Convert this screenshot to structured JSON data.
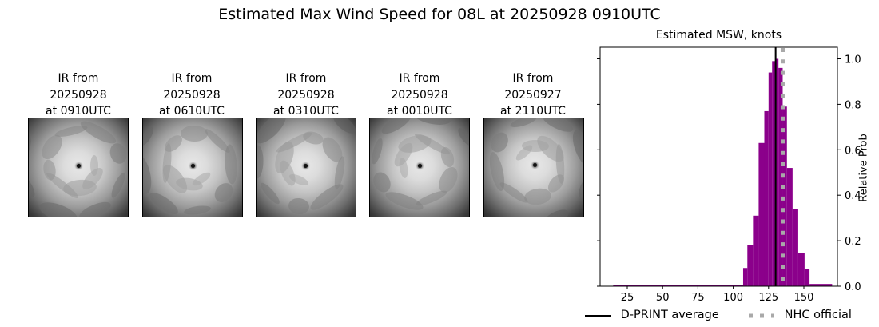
{
  "figure": {
    "title": "Estimated Max Wind Speed for 08L at 20250928 0910UTC"
  },
  "ir_panels": [
    {
      "line1": "IR from",
      "line2": "20250928",
      "line3": "at 0910UTC",
      "eye": [
        62,
        59
      ]
    },
    {
      "line1": "IR from",
      "line2": "20250928",
      "line3": "at 0610UTC",
      "eye": [
        62,
        59
      ]
    },
    {
      "line1": "IR from",
      "line2": "20250928",
      "line3": "at 0310UTC",
      "eye": [
        61,
        59
      ]
    },
    {
      "line1": "IR from",
      "line2": "20250928",
      "line3": "at 0010UTC",
      "eye": [
        62,
        59
      ]
    },
    {
      "line1": "IR from",
      "line2": "20250927",
      "line3": "at 2110UTC",
      "eye": [
        63,
        58
      ]
    }
  ],
  "chart_data": {
    "type": "bar",
    "title": "Estimated MSW, knots",
    "xlabel": "",
    "ylabel": "Relative Prob",
    "xlim": [
      6,
      174
    ],
    "ylim": [
      0,
      1.05
    ],
    "xticks": [
      25,
      50,
      75,
      100,
      125,
      150
    ],
    "yticks": [
      0.0,
      0.2,
      0.4,
      0.6,
      0.8,
      1.0
    ],
    "ytick_labels": [
      "0.0",
      "0.2",
      "0.4",
      "0.6",
      "0.8",
      "1.0"
    ],
    "y_axis_side": "right",
    "grid": false,
    "bar_color": "#8b008b",
    "histogram_bins": [
      {
        "x0": 15,
        "x1": 107,
        "value": 0.005
      },
      {
        "x0": 107,
        "x1": 110,
        "value": 0.08
      },
      {
        "x0": 110,
        "x1": 114,
        "value": 0.18
      },
      {
        "x0": 114,
        "x1": 118,
        "value": 0.31
      },
      {
        "x0": 118,
        "x1": 122,
        "value": 0.63
      },
      {
        "x0": 122,
        "x1": 125,
        "value": 0.77
      },
      {
        "x0": 125,
        "x1": 127.5,
        "value": 0.94
      },
      {
        "x0": 127.5,
        "x1": 130,
        "value": 0.99
      },
      {
        "x0": 130,
        "x1": 132,
        "value": 1.0
      },
      {
        "x0": 132,
        "x1": 135,
        "value": 0.96
      },
      {
        "x0": 135,
        "x1": 138,
        "value": 0.79
      },
      {
        "x0": 138,
        "x1": 142,
        "value": 0.52
      },
      {
        "x0": 142,
        "x1": 146,
        "value": 0.34
      },
      {
        "x0": 146,
        "x1": 150.5,
        "value": 0.145
      },
      {
        "x0": 150.5,
        "x1": 154,
        "value": 0.075
      },
      {
        "x0": 154,
        "x1": 170,
        "value": 0.01
      }
    ],
    "lines": [
      {
        "name": "D-PRINT average",
        "x": 130,
        "style": "solid",
        "color": "#000000"
      },
      {
        "name": "NHC official",
        "x": 135,
        "style": "dotted",
        "color": "#a9a9a9"
      }
    ],
    "legend": {
      "position": "bottom",
      "entries": [
        "D-PRINT average",
        "NHC official"
      ]
    }
  }
}
